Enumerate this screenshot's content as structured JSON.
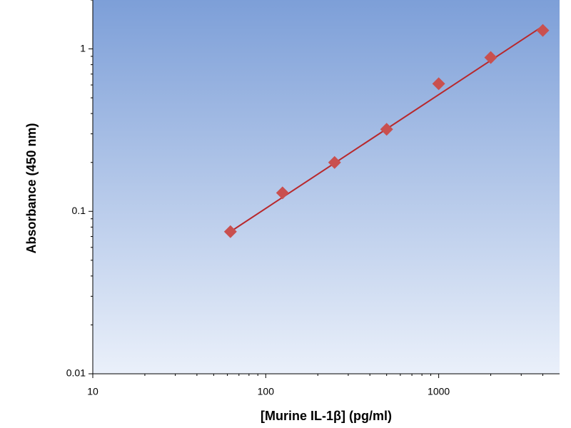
{
  "chart_data": {
    "type": "scatter",
    "x_label": "[Murine IL-1β] (pg/ml)",
    "y_label": "Absorbance (450 nm)",
    "x_log": true,
    "y_log": true,
    "grid": false,
    "xlim": [
      10,
      5000
    ],
    "ylim": [
      0.01,
      2
    ],
    "xticks": [
      10,
      100,
      1000
    ],
    "yticks": [
      0.01,
      0.1,
      1
    ],
    "xminorticks": [
      20,
      30,
      40,
      50,
      60,
      70,
      80,
      90,
      200,
      300,
      400,
      500,
      600,
      700,
      800,
      900,
      2000,
      3000,
      4000
    ],
    "yminorticks": [
      0.02,
      0.03,
      0.04,
      0.05,
      0.06,
      0.07,
      0.08,
      0.09,
      0.2,
      0.3,
      0.4,
      0.5,
      0.6,
      0.7,
      0.8,
      0.9,
      2
    ],
    "series": [
      {
        "kind": "points",
        "marker": "diamond",
        "color": "#c9504f",
        "x": [
          62.5,
          125,
          250,
          500,
          1000,
          2000,
          4000
        ],
        "values": [
          0.075,
          0.13,
          0.2,
          0.32,
          0.61,
          0.885,
          1.3
        ]
      },
      {
        "kind": "line",
        "color": "#b8282c",
        "x": [
          62.5,
          4000
        ],
        "values": [
          0.075,
          1.38
        ]
      }
    ]
  }
}
